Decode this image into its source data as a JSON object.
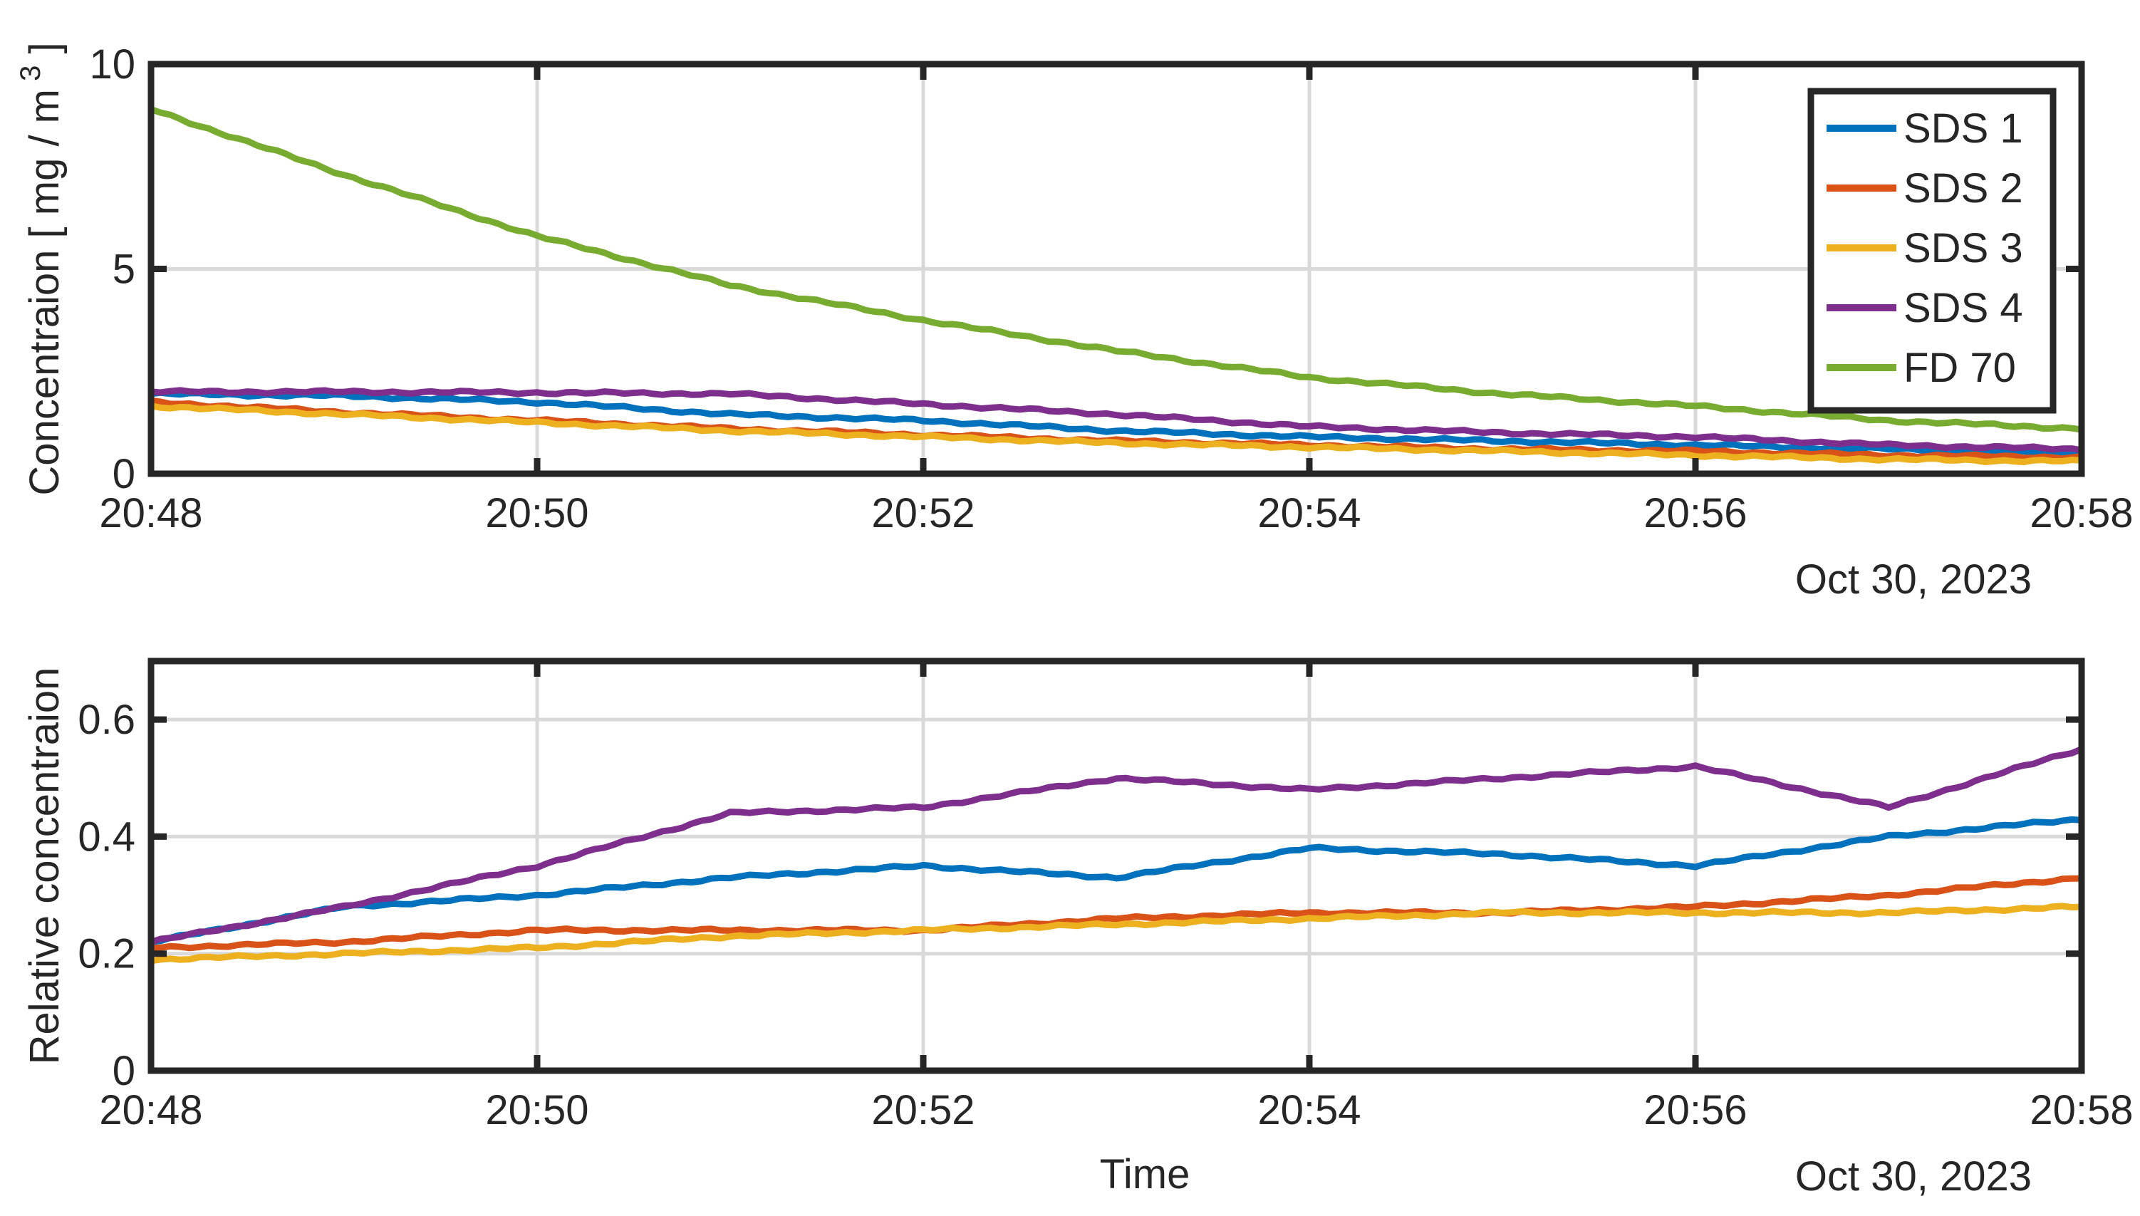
{
  "chart_data": [
    {
      "type": "line",
      "title": "",
      "xlabel": "",
      "ylabel": "Concentraion [ mg / m",
      "ylabel_superscript": "3",
      "ylabel_close": "]",
      "date_label": "Oct 30, 2023",
      "xlim": [
        "20:48",
        "20:58"
      ],
      "ylim": [
        0,
        10
      ],
      "x_ticks": [
        "20:48",
        "20:50",
        "20:52",
        "20:54",
        "20:56",
        "20:58"
      ],
      "y_ticks": [
        "0",
        "5",
        "10"
      ],
      "grid": true,
      "legend_position": "top-right",
      "x": [
        "20:48",
        "20:49",
        "20:50",
        "20:51",
        "20:52",
        "20:53",
        "20:54",
        "20:55",
        "20:56",
        "20:57",
        "20:58"
      ],
      "series": [
        {
          "name": "SDS 1",
          "color": "#0072BD",
          "values": [
            1.95,
            1.9,
            1.75,
            1.45,
            1.3,
            1.05,
            0.9,
            0.8,
            0.7,
            0.6,
            0.5
          ]
        },
        {
          "name": "SDS 2",
          "color": "#D95319",
          "values": [
            1.75,
            1.5,
            1.3,
            1.1,
            0.95,
            0.8,
            0.7,
            0.6,
            0.55,
            0.45,
            0.4
          ]
        },
        {
          "name": "SDS 3",
          "color": "#EDB120",
          "values": [
            1.65,
            1.45,
            1.25,
            1.05,
            0.9,
            0.75,
            0.65,
            0.55,
            0.45,
            0.35,
            0.3
          ]
        },
        {
          "name": "SDS 4",
          "color": "#7E2F8E",
          "values": [
            2.0,
            2.0,
            1.98,
            1.95,
            1.7,
            1.45,
            1.15,
            1.0,
            0.9,
            0.7,
            0.6
          ]
        },
        {
          "name": "FD 70",
          "color": "#77AC30",
          "values": [
            8.9,
            7.3,
            5.8,
            4.6,
            3.75,
            3.0,
            2.35,
            1.95,
            1.65,
            1.3,
            1.1
          ]
        }
      ]
    },
    {
      "type": "line",
      "title": "",
      "xlabel": "Time",
      "ylabel": "Relative concentraion",
      "date_label": "Oct 30, 2023",
      "xlim": [
        "20:48",
        "20:58"
      ],
      "ylim": [
        0,
        0.7
      ],
      "x_ticks": [
        "20:48",
        "20:50",
        "20:52",
        "20:54",
        "20:56",
        "20:58"
      ],
      "y_ticks": [
        "0",
        "0.2",
        "0.4",
        "0.6"
      ],
      "grid": true,
      "x": [
        "20:48",
        "20:49",
        "20:50",
        "20:51",
        "20:52",
        "20:53",
        "20:54",
        "20:55",
        "20:56",
        "20:57",
        "20:58"
      ],
      "series": [
        {
          "name": "SDS 1",
          "color": "#0072BD",
          "values": [
            0.22,
            0.28,
            0.3,
            0.33,
            0.35,
            0.33,
            0.38,
            0.37,
            0.35,
            0.4,
            0.43
          ]
        },
        {
          "name": "SDS 2",
          "color": "#D95319",
          "values": [
            0.21,
            0.22,
            0.24,
            0.24,
            0.24,
            0.26,
            0.27,
            0.27,
            0.28,
            0.3,
            0.33
          ]
        },
        {
          "name": "SDS 3",
          "color": "#EDB120",
          "values": [
            0.19,
            0.2,
            0.21,
            0.23,
            0.24,
            0.25,
            0.26,
            0.27,
            0.27,
            0.27,
            0.28
          ]
        },
        {
          "name": "SDS 4",
          "color": "#7E2F8E",
          "values": [
            0.22,
            0.28,
            0.35,
            0.44,
            0.45,
            0.5,
            0.48,
            0.5,
            0.52,
            0.45,
            0.55
          ]
        }
      ]
    }
  ]
}
